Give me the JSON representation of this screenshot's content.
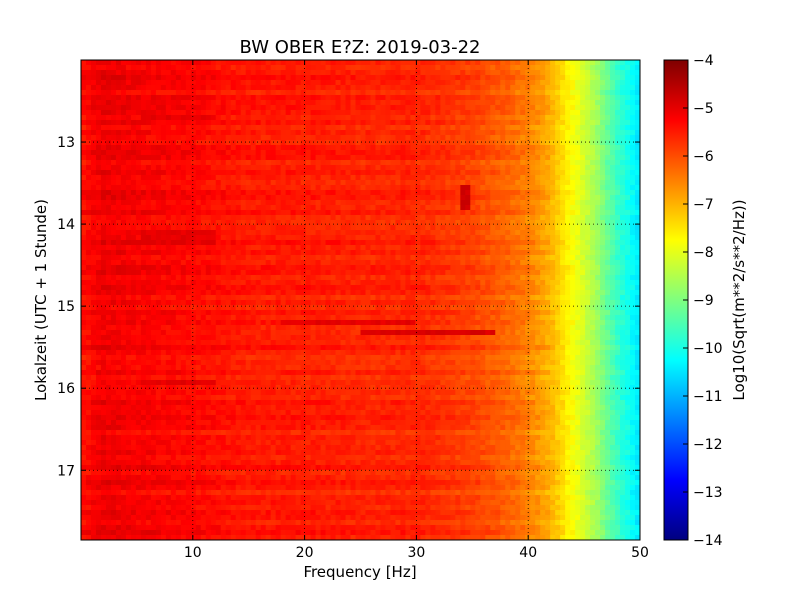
{
  "chart_data": {
    "type": "heatmap",
    "title": "BW OBER E?Z: 2019-03-22",
    "xlabel": "Frequency [Hz]",
    "ylabel": "Lokalzeit (UTC + 1 Stunde)",
    "xlim": [
      0,
      50
    ],
    "ylim": [
      17.85,
      12.0
    ],
    "y_inverted": true,
    "x_ticks": [
      10,
      20,
      30,
      40,
      50
    ],
    "x_tick_labels": [
      "10",
      "20",
      "30",
      "40",
      "50"
    ],
    "y_ticks": [
      13,
      14,
      15,
      16,
      17
    ],
    "y_tick_labels": [
      "13",
      "14",
      "15",
      "16",
      "17"
    ],
    "grid": true,
    "colormap": "jet",
    "colorbar": {
      "label": "Log10(Sqrt(m**2/s**2/Hz))",
      "range": [
        -14,
        -4
      ],
      "ticks": [
        -4,
        -5,
        -6,
        -7,
        -8,
        -9,
        -10,
        -11,
        -12,
        -13,
        -14
      ],
      "tick_labels": [
        "−4",
        "−5",
        "−6",
        "−7",
        "−8",
        "−9",
        "−10",
        "−11",
        "−12",
        "−13",
        "−14"
      ]
    },
    "spectral_profile": {
      "frequency_hz": [
        0,
        2,
        5,
        10,
        15,
        20,
        25,
        30,
        35,
        38,
        40,
        42,
        43,
        44,
        45,
        46,
        47,
        48,
        49,
        50
      ],
      "log10_amplitude": [
        -5.4,
        -5.1,
        -5.2,
        -5.3,
        -5.5,
        -5.5,
        -5.6,
        -5.6,
        -5.9,
        -6.2,
        -6.5,
        -7.0,
        -7.4,
        -7.8,
        -8.2,
        -8.6,
        -9.2,
        -9.7,
        -10.1,
        -10.5
      ]
    },
    "stronger_bands": [
      {
        "time_start": 15.15,
        "time_end": 15.2,
        "freq_start": 18,
        "freq_end": 30,
        "log10_amplitude": -5.0
      },
      {
        "time_start": 15.3,
        "time_end": 15.37,
        "freq_start": 25,
        "freq_end": 37,
        "log10_amplitude": -4.9
      },
      {
        "time_start": 14.05,
        "time_end": 14.28,
        "freq_start": 5.5,
        "freq_end": 12,
        "log10_amplitude": -5.0
      },
      {
        "time_start": 12.65,
        "time_end": 12.72,
        "freq_start": 5.5,
        "freq_end": 12,
        "log10_amplitude": -5.0
      },
      {
        "time_start": 15.9,
        "time_end": 15.98,
        "freq_start": 5.5,
        "freq_end": 12,
        "log10_amplitude": -5.0
      },
      {
        "time_start": 13.55,
        "time_end": 13.8,
        "freq_start": 33.9,
        "freq_end": 34.6,
        "log10_amplitude": -4.8
      }
    ]
  },
  "colors": {
    "jet_stops": [
      "#00007f",
      "#0000ff",
      "#007fff",
      "#00ffff",
      "#7fff7f",
      "#ffff00",
      "#ff7f00",
      "#ff0000",
      "#7f0000"
    ]
  }
}
